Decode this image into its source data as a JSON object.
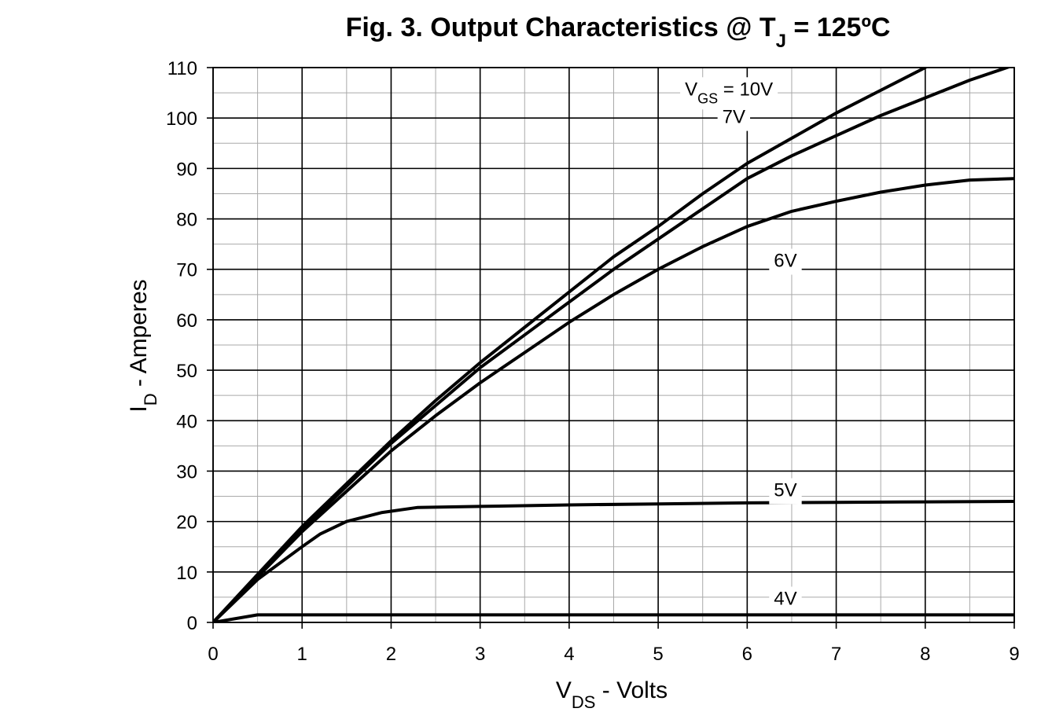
{
  "chart_data": {
    "type": "line",
    "title": {
      "prefix": "Fig. 3. Output Characteristics @ T",
      "sub": "J",
      "suffix": " = 125ºC"
    },
    "xlabel": {
      "main": "V",
      "sub": "DS",
      "rest": " - Volts"
    },
    "ylabel": {
      "main": "I",
      "sub": "D",
      "rest": " - Amperes"
    },
    "xlim": [
      0,
      9
    ],
    "ylim": [
      0,
      110
    ],
    "x_ticks": [
      0,
      1,
      2,
      3,
      4,
      5,
      6,
      7,
      8,
      9
    ],
    "y_ticks": [
      0,
      10,
      20,
      30,
      40,
      50,
      60,
      70,
      80,
      90,
      100,
      110
    ],
    "x_minor_step": 0.5,
    "y_minor_step": 5,
    "grid": true,
    "legend": "none",
    "series": [
      {
        "name": "VGS = 10V",
        "label": {
          "main": "V",
          "sub": "GS",
          "rest": " = 10V"
        },
        "label_at": [
          5.3,
          104.5
        ],
        "points": [
          [
            0,
            0
          ],
          [
            0.5,
            9.5
          ],
          [
            1,
            19
          ],
          [
            1.5,
            27.5
          ],
          [
            2,
            36
          ],
          [
            2.5,
            44
          ],
          [
            3,
            51.5
          ],
          [
            3.5,
            58.5
          ],
          [
            4,
            65.5
          ],
          [
            4.5,
            72.5
          ],
          [
            5,
            78.5
          ],
          [
            5.5,
            85
          ],
          [
            6,
            91
          ],
          [
            6.5,
            96
          ],
          [
            7,
            101
          ],
          [
            7.5,
            105.5
          ],
          [
            8,
            110
          ]
        ]
      },
      {
        "name": "7V",
        "label": {
          "main": "7V",
          "sub": "",
          "rest": ""
        },
        "label_at": [
          5.72,
          99
        ],
        "points": [
          [
            0,
            0
          ],
          [
            0.5,
            9.3
          ],
          [
            1,
            18.5
          ],
          [
            1.5,
            27
          ],
          [
            2,
            35.5
          ],
          [
            2.5,
            43
          ],
          [
            3,
            50.5
          ],
          [
            3.5,
            57
          ],
          [
            4,
            63.5
          ],
          [
            4.5,
            70
          ],
          [
            5,
            76
          ],
          [
            5.5,
            82
          ],
          [
            6,
            88
          ],
          [
            6.5,
            92.5
          ],
          [
            7,
            96.5
          ],
          [
            7.5,
            100.5
          ],
          [
            8,
            104
          ],
          [
            8.5,
            107.5
          ],
          [
            9,
            110.5
          ]
        ]
      },
      {
        "name": "6V",
        "label": {
          "main": "6V",
          "sub": "",
          "rest": ""
        },
        "label_at": [
          6.3,
          70.5
        ],
        "points": [
          [
            0,
            0
          ],
          [
            0.5,
            9
          ],
          [
            1,
            18
          ],
          [
            1.5,
            26
          ],
          [
            2,
            34
          ],
          [
            2.5,
            41
          ],
          [
            3,
            47.5
          ],
          [
            3.5,
            53.5
          ],
          [
            4,
            59.5
          ],
          [
            4.5,
            65
          ],
          [
            5,
            70
          ],
          [
            5.5,
            74.5
          ],
          [
            6,
            78.5
          ],
          [
            6.5,
            81.5
          ],
          [
            7,
            83.5
          ],
          [
            7.5,
            85.3
          ],
          [
            8,
            86.7
          ],
          [
            8.5,
            87.7
          ],
          [
            9,
            88
          ]
        ]
      },
      {
        "name": "5V",
        "label": {
          "main": "5V",
          "sub": "",
          "rest": ""
        },
        "label_at": [
          6.3,
          25
        ],
        "points": [
          [
            0,
            0
          ],
          [
            0.5,
            8.5
          ],
          [
            1,
            15
          ],
          [
            1.2,
            17.5
          ],
          [
            1.5,
            20
          ],
          [
            1.9,
            21.8
          ],
          [
            2.3,
            22.8
          ],
          [
            3,
            23
          ],
          [
            4,
            23.3
          ],
          [
            5,
            23.5
          ],
          [
            6,
            23.7
          ],
          [
            7,
            23.8
          ],
          [
            8,
            23.9
          ],
          [
            9,
            24
          ]
        ]
      },
      {
        "name": "4V",
        "label": {
          "main": "4V",
          "sub": "",
          "rest": ""
        },
        "label_at": [
          6.3,
          3.5
        ],
        "points": [
          [
            0,
            0
          ],
          [
            0.5,
            1.5
          ],
          [
            1,
            1.5
          ],
          [
            2,
            1.5
          ],
          [
            3,
            1.5
          ],
          [
            4,
            1.5
          ],
          [
            5,
            1.5
          ],
          [
            6,
            1.5
          ],
          [
            7,
            1.5
          ],
          [
            8,
            1.5
          ],
          [
            9,
            1.5
          ]
        ]
      }
    ]
  }
}
